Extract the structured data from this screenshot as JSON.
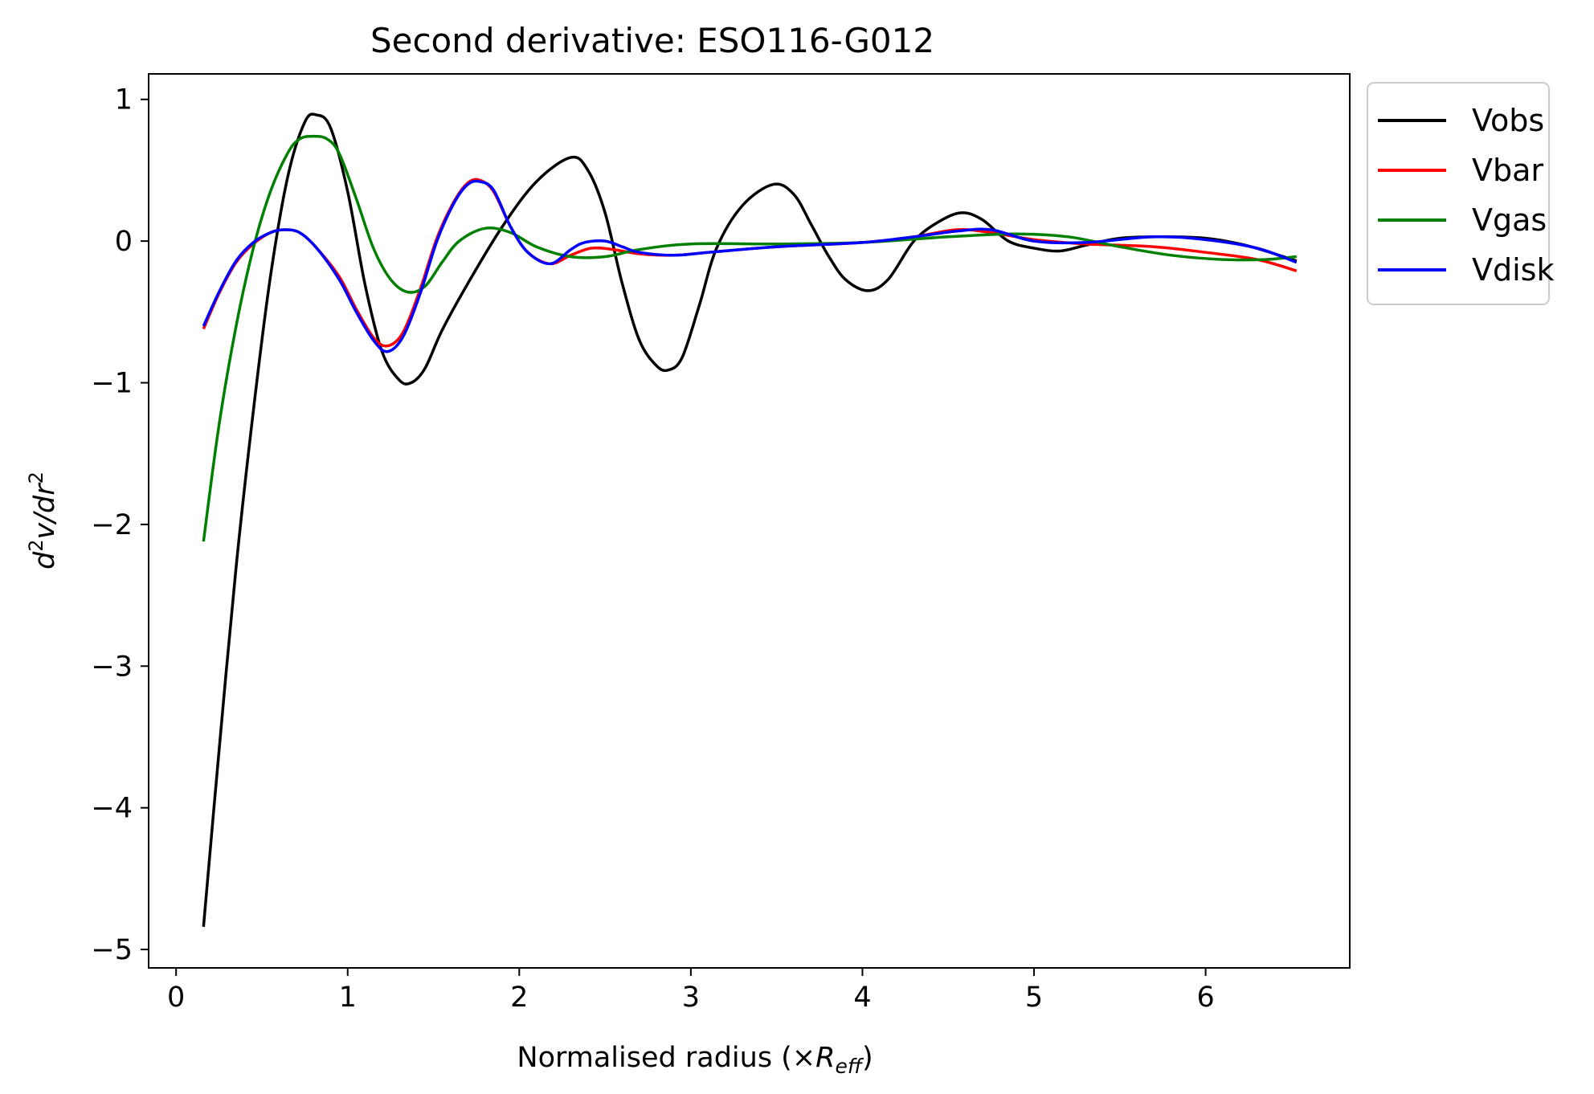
{
  "chart_data": {
    "type": "line",
    "title": "Second derivative: ESO116-G012",
    "xlabel_main": "Normalised radius (×",
    "xlabel_italic": "R",
    "xlabel_sub": "eff",
    "xlabel_close": ")",
    "ylabel_d": "d",
    "ylabel_sup1": "2",
    "ylabel_mid": "v/dr",
    "ylabel_sup2": "2",
    "xlim": [
      -0.16,
      6.84
    ],
    "ylim": [
      -5.13,
      1.18
    ],
    "xticks": [
      0,
      1,
      2,
      3,
      4,
      5,
      6
    ],
    "xtick_labels": [
      "0",
      "1",
      "2",
      "3",
      "4",
      "5",
      "6"
    ],
    "yticks": [
      1,
      0,
      -1,
      -2,
      -3,
      -4,
      -5
    ],
    "ytick_labels": [
      "1",
      "0",
      "−1",
      "−2",
      "−3",
      "−4",
      "−5"
    ],
    "legend_position": "outside upper-right",
    "grid": false,
    "series": [
      {
        "name": "Vobs",
        "color": "#000000",
        "x": [
          0.16,
          0.25,
          0.35,
          0.45,
          0.55,
          0.65,
          0.75,
          0.82,
          0.9,
          1.0,
          1.1,
          1.2,
          1.3,
          1.37,
          1.45,
          1.55,
          1.7,
          1.9,
          2.1,
          2.3,
          2.4,
          2.5,
          2.6,
          2.7,
          2.8,
          2.87,
          2.95,
          3.05,
          3.15,
          3.3,
          3.48,
          3.6,
          3.7,
          3.8,
          3.9,
          4.03,
          4.15,
          4.3,
          4.45,
          4.58,
          4.7,
          4.85,
          5.0,
          5.15,
          5.3,
          5.5,
          5.75,
          6.0,
          6.2,
          6.35,
          6.53
        ],
        "y": [
          -4.84,
          -3.6,
          -2.3,
          -1.2,
          -0.25,
          0.45,
          0.84,
          0.89,
          0.8,
          0.35,
          -0.3,
          -0.78,
          -0.98,
          -1.0,
          -0.9,
          -0.63,
          -0.3,
          0.1,
          0.42,
          0.59,
          0.5,
          0.2,
          -0.3,
          -0.7,
          -0.88,
          -0.91,
          -0.82,
          -0.45,
          -0.05,
          0.25,
          0.4,
          0.33,
          0.12,
          -0.1,
          -0.27,
          -0.35,
          -0.27,
          0.0,
          0.14,
          0.2,
          0.15,
          0.0,
          -0.05,
          -0.07,
          -0.03,
          0.02,
          0.03,
          0.02,
          -0.02,
          -0.07,
          -0.14
        ]
      },
      {
        "name": "Vbar",
        "color": "#ff0000",
        "x": [
          0.16,
          0.25,
          0.35,
          0.45,
          0.55,
          0.63,
          0.72,
          0.82,
          0.95,
          1.05,
          1.15,
          1.23,
          1.32,
          1.42,
          1.52,
          1.62,
          1.7,
          1.77,
          1.85,
          1.95,
          2.05,
          2.18,
          2.3,
          2.42,
          2.55,
          2.7,
          2.9,
          3.1,
          3.5,
          4.0,
          4.3,
          4.55,
          4.75,
          5.0,
          5.3,
          5.7,
          6.0,
          6.3,
          6.53
        ],
        "y": [
          -0.62,
          -0.37,
          -0.15,
          -0.02,
          0.06,
          0.08,
          0.06,
          -0.05,
          -0.25,
          -0.48,
          -0.68,
          -0.74,
          -0.65,
          -0.35,
          0.02,
          0.28,
          0.41,
          0.43,
          0.35,
          0.1,
          -0.08,
          -0.16,
          -0.1,
          -0.05,
          -0.06,
          -0.09,
          -0.1,
          -0.08,
          -0.04,
          -0.01,
          0.03,
          0.08,
          0.06,
          0.01,
          -0.02,
          -0.04,
          -0.08,
          -0.13,
          -0.21
        ]
      },
      {
        "name": "Vgas",
        "color": "#008000",
        "x": [
          0.16,
          0.25,
          0.35,
          0.45,
          0.55,
          0.65,
          0.72,
          0.8,
          0.88,
          0.95,
          1.05,
          1.15,
          1.25,
          1.35,
          1.45,
          1.55,
          1.65,
          1.8,
          1.95,
          2.1,
          2.3,
          2.5,
          2.7,
          3.0,
          3.5,
          4.0,
          4.5,
          4.9,
          5.2,
          5.5,
          5.8,
          6.1,
          6.35,
          6.53
        ],
        "y": [
          -2.12,
          -1.3,
          -0.6,
          -0.05,
          0.35,
          0.62,
          0.72,
          0.74,
          0.72,
          0.62,
          0.3,
          -0.05,
          -0.27,
          -0.36,
          -0.32,
          -0.15,
          0.0,
          0.09,
          0.06,
          -0.04,
          -0.11,
          -0.11,
          -0.06,
          -0.02,
          -0.02,
          -0.01,
          0.03,
          0.05,
          0.03,
          -0.04,
          -0.1,
          -0.13,
          -0.13,
          -0.11
        ]
      },
      {
        "name": "Vdisk",
        "color": "#0000ff",
        "x": [
          0.16,
          0.25,
          0.35,
          0.45,
          0.55,
          0.63,
          0.72,
          0.82,
          0.95,
          1.05,
          1.15,
          1.23,
          1.32,
          1.42,
          1.52,
          1.62,
          1.7,
          1.77,
          1.85,
          1.95,
          2.05,
          2.18,
          2.3,
          2.38,
          2.5,
          2.6,
          2.7,
          2.9,
          3.1,
          3.5,
          4.0,
          4.3,
          4.55,
          4.75,
          5.0,
          5.3,
          5.7,
          6.0,
          6.3,
          6.53
        ],
        "y": [
          -0.6,
          -0.36,
          -0.14,
          -0.01,
          0.06,
          0.08,
          0.06,
          -0.05,
          -0.27,
          -0.5,
          -0.7,
          -0.78,
          -0.68,
          -0.38,
          0.0,
          0.27,
          0.4,
          0.42,
          0.36,
          0.1,
          -0.08,
          -0.16,
          -0.06,
          -0.01,
          0.0,
          -0.04,
          -0.08,
          -0.1,
          -0.08,
          -0.04,
          -0.01,
          0.03,
          0.07,
          0.08,
          0.0,
          -0.01,
          0.03,
          0.01,
          -0.05,
          -0.15
        ]
      }
    ]
  }
}
